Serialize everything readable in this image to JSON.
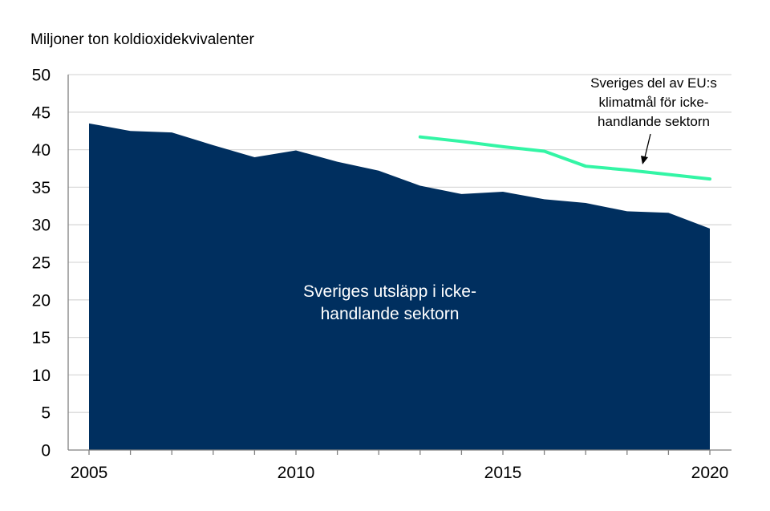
{
  "chart_data": {
    "type": "area",
    "ylabel": "Miljoner ton koldioxidekvivalenter",
    "ylim": [
      0,
      50
    ],
    "y_ticks": [
      0,
      5,
      10,
      15,
      20,
      25,
      30,
      35,
      40,
      45,
      50
    ],
    "xlim": [
      2005,
      2020
    ],
    "x_ticks": [
      2005,
      2010,
      2015,
      2020
    ],
    "grid": true,
    "series": [
      {
        "name": "Sveriges utsläpp i icke-handlande sektorn",
        "type": "area",
        "color": "#002f5f",
        "x": [
          2005,
          2006,
          2007,
          2008,
          2009,
          2010,
          2011,
          2012,
          2013,
          2014,
          2015,
          2016,
          2017,
          2018,
          2019,
          2020
        ],
        "values": [
          43.5,
          42.5,
          42.3,
          40.6,
          39.0,
          39.9,
          38.4,
          37.2,
          35.2,
          34.1,
          34.4,
          33.4,
          32.9,
          31.8,
          31.6,
          29.5
        ]
      },
      {
        "name": "Sveriges del av EU:s klimatmål för icke-handlande sektorn",
        "type": "line",
        "color": "#33f5a5",
        "x": [
          2013,
          2014,
          2015,
          2016,
          2017,
          2018,
          2019,
          2020
        ],
        "values": [
          41.7,
          41.1,
          40.4,
          39.8,
          37.8,
          37.3,
          36.7,
          36.1
        ]
      }
    ],
    "annotations": {
      "area_label_lines": [
        "Sveriges utsläpp i icke-",
        "handlande sektorn"
      ],
      "line_label_lines": [
        "Sveriges del av EU:s",
        "klimatmål för icke-",
        "handlande sektorn"
      ]
    }
  }
}
